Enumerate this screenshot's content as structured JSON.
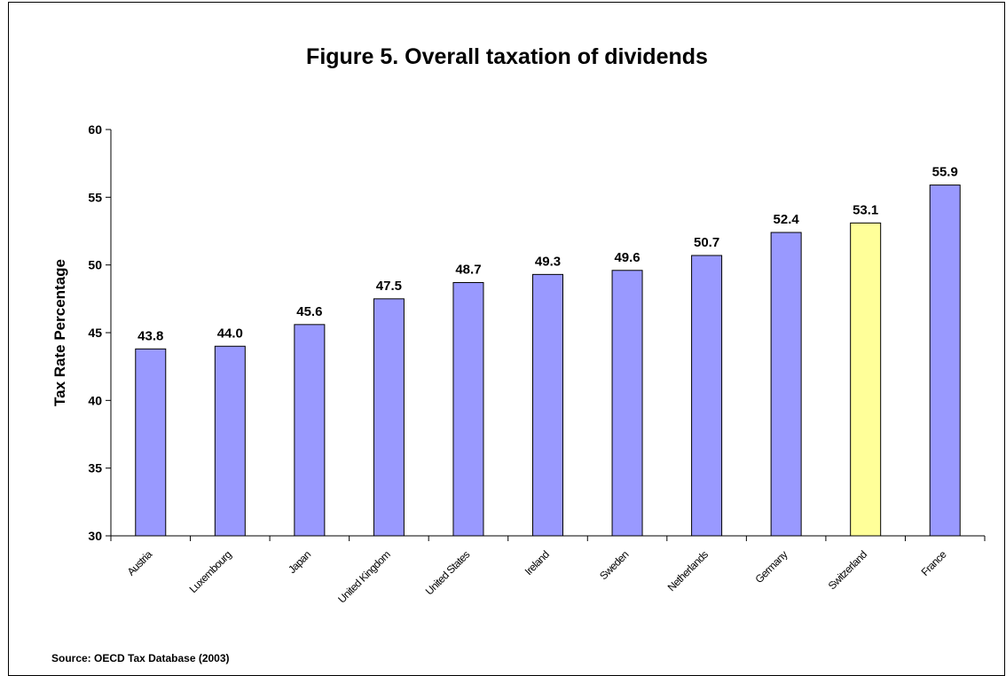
{
  "chart_data": {
    "type": "bar",
    "title": "Figure 5. Overall taxation of dividends",
    "ylabel": "Tax Rate Percentage",
    "xlabel": "",
    "ylim": [
      30,
      60
    ],
    "yticks": [
      30,
      35,
      40,
      45,
      50,
      55,
      60
    ],
    "grid": false,
    "legend": "none",
    "categories": [
      "Austria",
      "Luxembourg",
      "Japan",
      "United Kingdom",
      "United States",
      "Ireland",
      "Sweden",
      "Netherlands",
      "Germany",
      "Switzerland",
      "France"
    ],
    "values": [
      43.8,
      44.0,
      45.6,
      47.5,
      48.7,
      49.3,
      49.6,
      50.7,
      52.4,
      53.1,
      55.9
    ],
    "data_labels": [
      "43.8",
      "44.0",
      "45.6",
      "47.5",
      "48.7",
      "49.3",
      "49.6",
      "50.7",
      "52.4",
      "53.1",
      "55.9"
    ],
    "bar_color": "#9999ff",
    "highlight_color": "#ffff99",
    "highlight_index": 9,
    "source_note": "Source: OECD Tax Database (2003)"
  }
}
